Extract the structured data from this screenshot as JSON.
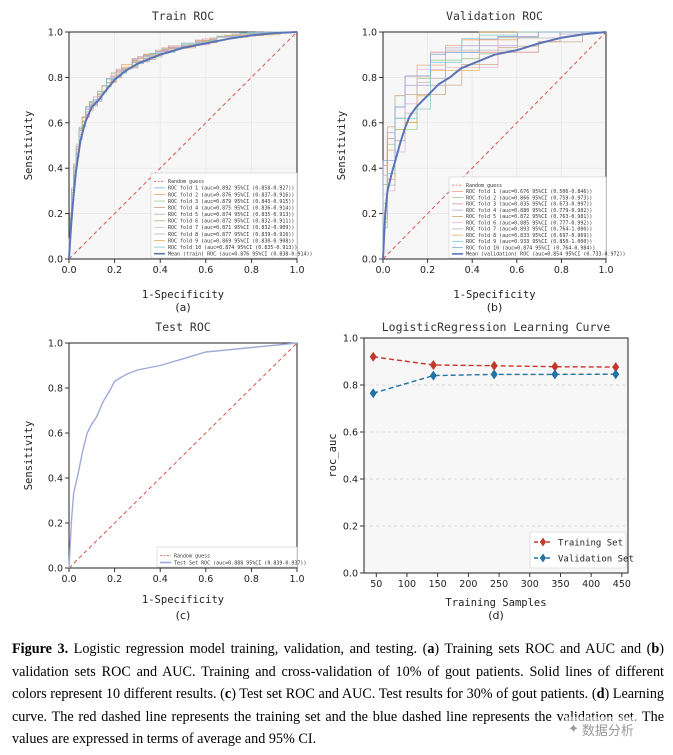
{
  "chart_data": [
    {
      "id": "a",
      "type": "line",
      "title": "Train ROC",
      "xlabel": "1-Specificity",
      "ylabel": "Sensitivity",
      "panel_label": "(a)",
      "xlim": [
        0,
        1
      ],
      "ylim": [
        0,
        1
      ],
      "xticks": [
        "0.0",
        "0.2",
        "0.4",
        "0.6",
        "0.8",
        "1.0"
      ],
      "yticks": [
        "0.0",
        "0.2",
        "0.4",
        "0.6",
        "0.8",
        "1.0"
      ],
      "grid": true,
      "legend_position": "bottom-right",
      "random_guess_label": "Random guess",
      "mean_curve": {
        "label": "Mean (train) ROC (auc=0.876 95%CI (0.838-0.914))",
        "color": "#5b74b8",
        "x": [
          0,
          0.005,
          0.01,
          0.02,
          0.03,
          0.05,
          0.07,
          0.1,
          0.13,
          0.16,
          0.2,
          0.25,
          0.3,
          0.35,
          0.4,
          0.5,
          0.6,
          0.7,
          0.8,
          0.9,
          1.0
        ],
        "y": [
          0,
          0.08,
          0.16,
          0.28,
          0.38,
          0.52,
          0.6,
          0.67,
          0.7,
          0.74,
          0.79,
          0.83,
          0.86,
          0.88,
          0.9,
          0.93,
          0.95,
          0.97,
          0.985,
          0.995,
          1.0
        ]
      },
      "folds": [
        {
          "label": "ROC fold  1 (auc=0.892 95%CI (0.858-0.927))",
          "color": "#7fa7d9"
        },
        {
          "label": "ROC fold  2 (auc=0.876 95%CI (0.837-0.916))",
          "color": "#e8a06a"
        },
        {
          "label": "ROC fold  3 (auc=0.879 95%CI (0.843-0.915))",
          "color": "#9cc98a"
        },
        {
          "label": "ROC fold  4 (auc=0.875 95%CI (0.836-0.914))",
          "color": "#d98a8a"
        },
        {
          "label": "ROC fold  5 (auc=0.874 95%CI (0.835-0.913))",
          "color": "#b9a3d6"
        },
        {
          "label": "ROC fold  6 (auc=0.872 95%CI (0.832-0.911))",
          "color": "#c9a27e"
        },
        {
          "label": "ROC fold  7 (auc=0.871 95%CI (0.832-0.909))",
          "color": "#e8b4d4"
        },
        {
          "label": "ROC fold  8 (auc=0.877 95%CI (0.839-0.916))",
          "color": "#b5b5b5"
        },
        {
          "label": "ROC fold  9 (auc=0.869 95%CI (0.830-0.908))",
          "color": "#e0b15a"
        },
        {
          "label": "ROC fold 10 (auc=0.874 95%CI (0.835-0.913))",
          "color": "#7cc9cf"
        }
      ]
    },
    {
      "id": "b",
      "type": "line",
      "title": "Validation ROC",
      "xlabel": "1-Specificity",
      "ylabel": "Sensitivity",
      "panel_label": "(b)",
      "xlim": [
        0,
        1
      ],
      "ylim": [
        0,
        1
      ],
      "xticks": [
        "0.0",
        "0.2",
        "0.4",
        "0.6",
        "0.8",
        "1.0"
      ],
      "yticks": [
        "0.0",
        "0.2",
        "0.4",
        "0.6",
        "0.8",
        "1.0"
      ],
      "grid": true,
      "legend_position": "bottom-right",
      "random_guess_label": "Random guess",
      "mean_curve": {
        "label": "Mean (validation) ROC (auc=0.854 95%CI (0.733-0.972))",
        "color": "#5b74b8",
        "x": [
          0,
          0.01,
          0.02,
          0.04,
          0.06,
          0.08,
          0.1,
          0.12,
          0.15,
          0.18,
          0.2,
          0.25,
          0.3,
          0.35,
          0.4,
          0.5,
          0.6,
          0.7,
          0.8,
          0.9,
          1.0
        ],
        "y": [
          0,
          0.2,
          0.3,
          0.38,
          0.45,
          0.52,
          0.58,
          0.63,
          0.67,
          0.7,
          0.72,
          0.77,
          0.8,
          0.84,
          0.86,
          0.9,
          0.92,
          0.95,
          0.975,
          0.99,
          1.0
        ]
      },
      "folds": [
        {
          "label": "ROC fold  1 (auc=0.676 95%CI (0.506-0.846))",
          "color": "#e8a06a"
        },
        {
          "label": "ROC fold  2 (auc=0.866 95%CI (0.759-0.973))",
          "color": "#9cc98a"
        },
        {
          "label": "ROC fold  3 (auc=0.835 95%CI (0.673-0.997))",
          "color": "#d98a8a"
        },
        {
          "label": "ROC fold  4 (auc=0.880 95%CI (0.779-0.982))",
          "color": "#b9a3d6"
        },
        {
          "label": "ROC fold  5 (auc=0.872 95%CI (0.763-0.981))",
          "color": "#c9a27e"
        },
        {
          "label": "ROC fold  6 (auc=0.885 95%CI (0.777-0.992))",
          "color": "#e8b4d4"
        },
        {
          "label": "ROC fold  7 (auc=0.893 95%CI (0.764-1.000))",
          "color": "#b5b5b5"
        },
        {
          "label": "ROC fold  8 (auc=0.833 95%CI (0.697-0.969))",
          "color": "#e0b15a"
        },
        {
          "label": "ROC fold  9 (auc=0.933 95%CI (0.850-1.000))",
          "color": "#7cc9cf"
        },
        {
          "label": "ROC fold 10 (auc=0.874 95%CI (0.764-0.984))",
          "color": "#7fa7d9"
        }
      ]
    },
    {
      "id": "c",
      "type": "line",
      "title": "Test ROC",
      "xlabel": "1-Specificity",
      "ylabel": "Sensitivity",
      "panel_label": "(c)",
      "xlim": [
        0,
        1
      ],
      "ylim": [
        0,
        1
      ],
      "xticks": [
        "0.0",
        "0.2",
        "0.4",
        "0.6",
        "0.8",
        "1.0"
      ],
      "yticks": [
        "0.0",
        "0.2",
        "0.4",
        "0.6",
        "0.8",
        "1.0"
      ],
      "grid": false,
      "legend_position": "bottom-right",
      "random_guess_label": "Random guess",
      "mean_curve": {
        "label": "Test Set ROC (auc=0.888 95%CI (0.839-0.937))",
        "color": "#9fa9d8",
        "x": [
          0,
          0.01,
          0.02,
          0.04,
          0.06,
          0.08,
          0.1,
          0.12,
          0.15,
          0.18,
          0.2,
          0.25,
          0.3,
          0.4,
          0.5,
          0.6,
          0.7,
          0.8,
          0.9,
          1.0
        ],
        "y": [
          0,
          0.2,
          0.33,
          0.42,
          0.52,
          0.6,
          0.64,
          0.67,
          0.74,
          0.79,
          0.83,
          0.86,
          0.88,
          0.9,
          0.93,
          0.96,
          0.97,
          0.98,
          0.99,
          1.0
        ]
      },
      "folds": []
    },
    {
      "id": "d",
      "type": "line",
      "title": "LogisticRegression Learning Curve",
      "xlabel": "Training Samples",
      "ylabel": "roc_auc",
      "panel_label": "(d)",
      "xlim": [
        30,
        460
      ],
      "ylim": [
        0,
        1
      ],
      "xticks": [
        "50",
        "100",
        "150",
        "200",
        "250",
        "300",
        "350",
        "400",
        "450"
      ],
      "yticks": [
        "0.0",
        "0.2",
        "0.4",
        "0.6",
        "0.8",
        "1.0"
      ],
      "grid": true,
      "legend_position": "bottom-right",
      "series": [
        {
          "name": "Training Set",
          "color": "#c0392b",
          "x": [
            45,
            143,
            242,
            341,
            440
          ],
          "y": [
            0.92,
            0.885,
            0.882,
            0.878,
            0.876
          ]
        },
        {
          "name": "Validation Set",
          "color": "#2471a3",
          "x": [
            45,
            143,
            242,
            341,
            440
          ],
          "y": [
            0.765,
            0.84,
            0.845,
            0.845,
            0.846
          ]
        }
      ]
    }
  ],
  "caption": {
    "figure_label": "Figure 3.",
    "text_1": " Logistic regression model training, validation, and testing. (",
    "a": "a",
    "text_2": ") Training sets ROC and AUC and (",
    "b": "b",
    "text_3": ") validation sets ROC and AUC. Training and cross-validation of 10% of gout patients. Solid lines of different colors represent 10 different results. (",
    "c": "c",
    "text_4": ") Test set ROC and AUC. Test results for 30% of gout patients. (",
    "d": "d",
    "text_5": ") Learning curve. The red dashed line represents the training set and the blue dashed line represents the validation set. The values are expressed in terms of average and 95% CI."
  },
  "watermark": "数据分析"
}
